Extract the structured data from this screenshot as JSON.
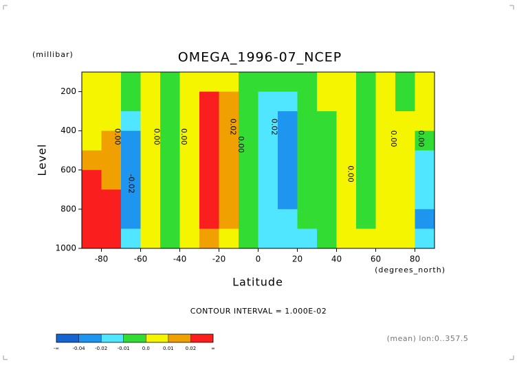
{
  "chart_data": {
    "type": "contour",
    "title": "OMEGA_1996-07_NCEP",
    "y_unit_label": "(millibar)",
    "ylabel": "Level",
    "xlabel": "Latitude",
    "x_unit_label": "(degrees_north)",
    "contour_interval": "CONTOUR INTERVAL = 1.000E-02",
    "footnote": "(mean) lon:0..357.5",
    "xlim": [
      -90,
      90
    ],
    "xticks": [
      -80,
      -60,
      -40,
      -20,
      0,
      20,
      40,
      60,
      80
    ],
    "ylim": [
      100,
      1000
    ],
    "yticks": [
      200,
      400,
      600,
      800,
      1000
    ],
    "y_inverted": true,
    "x": [
      -85,
      -75,
      -65,
      -55,
      -45,
      -35,
      -25,
      -15,
      -5,
      5,
      15,
      25,
      35,
      45,
      55,
      65,
      75,
      85
    ],
    "y": [
      150,
      250,
      350,
      450,
      550,
      650,
      750,
      850,
      950
    ],
    "z": [
      [
        0.005,
        0.005,
        0.005,
        0.008,
        0.015,
        0.03,
        0.05,
        0.06,
        0.06
      ],
      [
        0.003,
        0.004,
        0.008,
        0.015,
        0.015,
        0.018,
        0.025,
        0.03,
        0.03
      ],
      [
        -0.005,
        -0.008,
        -0.015,
        -0.025,
        -0.03,
        -0.03,
        -0.03,
        -0.025,
        -0.015
      ],
      [
        0.004,
        0.004,
        0.004,
        0.004,
        0.004,
        0.004,
        0.004,
        0.004,
        0.002
      ],
      [
        -0.003,
        -0.003,
        -0.003,
        -0.003,
        -0.003,
        -0.003,
        -0.003,
        -0.003,
        -0.003
      ],
      [
        0.005,
        0.006,
        0.006,
        0.006,
        0.006,
        0.006,
        0.006,
        0.006,
        0.005
      ],
      [
        0.008,
        0.02,
        0.03,
        0.03,
        0.03,
        0.03,
        0.03,
        0.02,
        0.012
      ],
      [
        0.005,
        0.015,
        0.015,
        0.012,
        0.012,
        0.012,
        0.012,
        0.012,
        0.008
      ],
      [
        -0.003,
        -0.003,
        -0.003,
        -0.003,
        -0.003,
        -0.003,
        -0.003,
        -0.003,
        -0.003
      ],
      [
        -0.003,
        -0.015,
        -0.015,
        -0.015,
        -0.015,
        -0.015,
        -0.015,
        -0.015,
        -0.015
      ],
      [
        -0.005,
        -0.015,
        -0.025,
        -0.025,
        -0.025,
        -0.025,
        -0.025,
        -0.015,
        -0.012
      ],
      [
        -0.004,
        -0.004,
        -0.004,
        -0.004,
        -0.004,
        -0.004,
        -0.004,
        -0.004,
        -0.012
      ],
      [
        0.004,
        0.004,
        -0.003,
        -0.003,
        -0.003,
        -0.003,
        -0.003,
        -0.003,
        -0.003
      ],
      [
        0.004,
        0.004,
        0.004,
        0.004,
        0.004,
        0.004,
        0.004,
        0.004,
        0.004
      ],
      [
        -0.003,
        -0.003,
        -0.003,
        -0.003,
        -0.003,
        -0.003,
        -0.003,
        -0.003,
        0.003
      ],
      [
        0.004,
        0.004,
        0.004,
        0.004,
        0.004,
        0.004,
        0.004,
        0.004,
        0.004
      ],
      [
        -0.003,
        -0.003,
        0.003,
        0.003,
        0.003,
        0.003,
        0.003,
        0.003,
        0.003
      ],
      [
        0.003,
        0.003,
        0.003,
        -0.005,
        -0.012,
        -0.015,
        -0.02,
        -0.025,
        -0.015
      ]
    ],
    "contour_labels": [
      "0.00",
      "-0.02",
      "0.00",
      "0.00",
      "0.02",
      "0.00",
      "0.02",
      "0.00",
      "0.00",
      "0.00"
    ],
    "colorbar": {
      "levels": [
        -0.04,
        -0.02,
        -0.01,
        {
          "value": 0,
          "label": "0.0"
        },
        0.01,
        0.02
      ],
      "end_labels": [
        "-∞",
        "∞"
      ],
      "colors": [
        "#1464d2",
        "#1e96f0",
        "#50e6ff",
        "#32dc32",
        "#f5f500",
        "#f0a000",
        "#fa1e1e"
      ]
    }
  }
}
